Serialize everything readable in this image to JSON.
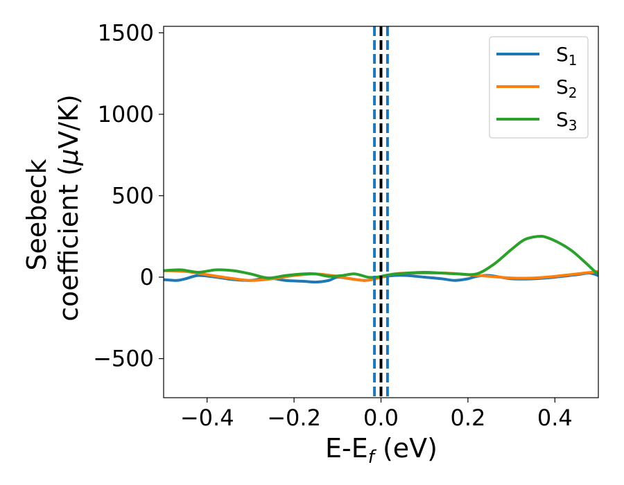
{
  "chart_data": {
    "type": "line",
    "xlabel": "E-E",
    "xlabel_sub": "f",
    "xlabel_unit": " (eV)",
    "ylabel_line1": "Seebeck",
    "ylabel_line2": "coefficient  (",
    "ylabel_mu": "μ",
    "ylabel_unit": "V/K)",
    "xlim": [
      -0.5,
      0.5
    ],
    "ylim": [
      -740,
      1540
    ],
    "xticks": [
      -0.4,
      -0.2,
      0.0,
      0.2,
      0.4
    ],
    "xtick_labels": [
      "−0.4",
      "−0.2",
      "0.0",
      "0.2",
      "0.4"
    ],
    "yticks": [
      -500,
      0,
      500,
      1000,
      1500
    ],
    "ytick_labels": [
      "−500",
      "0",
      "500",
      "1000",
      "1500"
    ],
    "grid": false,
    "legend_position": "top-right",
    "legend": [
      {
        "base": "S",
        "sub": "1"
      },
      {
        "base": "S",
        "sub": "2"
      },
      {
        "base": "S",
        "sub": "3"
      }
    ],
    "series": [
      {
        "name": "S1",
        "color": "#1f77b4",
        "x": [
          -0.5,
          -0.47,
          -0.45,
          -0.42,
          -0.38,
          -0.34,
          -0.3,
          -0.26,
          -0.22,
          -0.18,
          -0.15,
          -0.12,
          -0.1,
          -0.07,
          -0.04,
          -0.02,
          0.0,
          0.03,
          0.06,
          0.1,
          0.14,
          0.17,
          0.2,
          0.22,
          0.25,
          0.3,
          0.35,
          0.4,
          0.45,
          0.48,
          0.5
        ],
        "y": [
          -15,
          -20,
          -10,
          10,
          0,
          -15,
          -20,
          -5,
          -20,
          -25,
          -30,
          -20,
          0,
          -10,
          -20,
          -15,
          0,
          10,
          10,
          0,
          -10,
          -20,
          -10,
          5,
          10,
          -10,
          -10,
          0,
          15,
          25,
          10
        ]
      },
      {
        "name": "S2",
        "color": "#ff7f0e",
        "x": [
          -0.5,
          -0.45,
          -0.4,
          -0.35,
          -0.3,
          -0.25,
          -0.2,
          -0.15,
          -0.1,
          -0.07,
          -0.04,
          -0.02,
          0.0,
          0.03,
          0.06,
          0.1,
          0.15,
          0.2,
          0.25,
          0.3,
          0.35,
          0.4,
          0.45,
          0.5
        ],
        "y": [
          40,
          35,
          15,
          -5,
          -20,
          -10,
          10,
          20,
          5,
          -10,
          -20,
          -15,
          0,
          20,
          25,
          25,
          25,
          15,
          5,
          -5,
          -5,
          5,
          20,
          35
        ]
      },
      {
        "name": "S3",
        "color": "#2ca02c",
        "x": [
          -0.5,
          -0.46,
          -0.42,
          -0.38,
          -0.34,
          -0.3,
          -0.26,
          -0.22,
          -0.18,
          -0.15,
          -0.12,
          -0.09,
          -0.06,
          -0.03,
          -0.01,
          0.02,
          0.06,
          0.1,
          0.14,
          0.18,
          0.22,
          0.26,
          0.3,
          0.33,
          0.36,
          0.38,
          0.41,
          0.44,
          0.47,
          0.49,
          0.5
        ],
        "y": [
          40,
          45,
          30,
          45,
          40,
          20,
          -5,
          10,
          20,
          20,
          5,
          10,
          20,
          0,
          0,
          15,
          25,
          30,
          25,
          20,
          20,
          80,
          170,
          230,
          250,
          245,
          210,
          160,
          90,
          40,
          20
        ]
      }
    ],
    "vlines": [
      {
        "x": 0.0,
        "color": "#000000",
        "style": "dashed"
      },
      {
        "x": -0.015,
        "color": "#1f77b4",
        "style": "dashed"
      },
      {
        "x": 0.015,
        "color": "#1f77b4",
        "style": "dashed"
      }
    ]
  }
}
